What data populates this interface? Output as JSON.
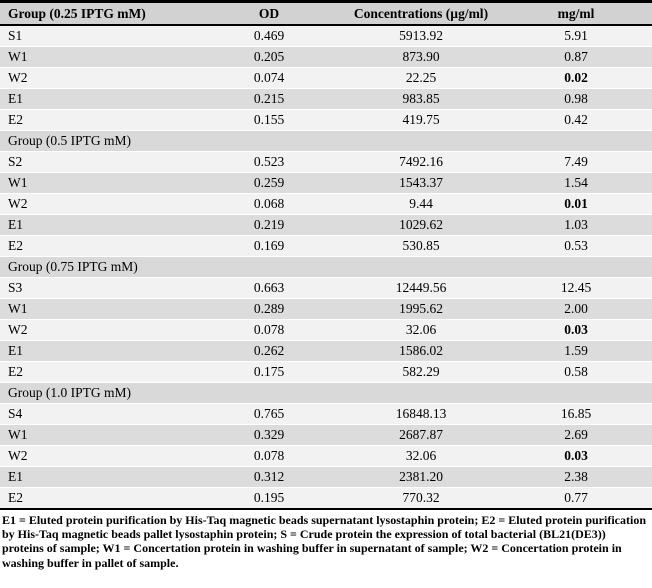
{
  "table": {
    "header": {
      "col_group": "Group (0.25 IPTG mM)",
      "col_od": "OD",
      "col_conc": "Concentrations (µg/ml)",
      "col_mgml": "mg/ml"
    },
    "groups": [
      {
        "label": "",
        "rows": [
          {
            "sample": "S1",
            "od": "0.469",
            "conc": "5913.92",
            "mgml": "5.91",
            "mgml_bold": false
          },
          {
            "sample": "W1",
            "od": "0.205",
            "conc": "873.90",
            "mgml": "0.87",
            "mgml_bold": false
          },
          {
            "sample": "W2",
            "od": "0.074",
            "conc": "22.25",
            "mgml": "0.02",
            "mgml_bold": true
          },
          {
            "sample": "E1",
            "od": "0.215",
            "conc": "983.85",
            "mgml": "0.98",
            "mgml_bold": false
          },
          {
            "sample": "E2",
            "od": "0.155",
            "conc": "419.75",
            "mgml": "0.42",
            "mgml_bold": false
          }
        ]
      },
      {
        "label": "Group (0.5 IPTG mM)",
        "rows": [
          {
            "sample": "S2",
            "od": "0.523",
            "conc": "7492.16",
            "mgml": "7.49",
            "mgml_bold": false
          },
          {
            "sample": "W1",
            "od": "0.259",
            "conc": "1543.37",
            "mgml": "1.54",
            "mgml_bold": false
          },
          {
            "sample": "W2",
            "od": "0.068",
            "conc": "9.44",
            "mgml": "0.01",
            "mgml_bold": true
          },
          {
            "sample": "E1",
            "od": "0.219",
            "conc": "1029.62",
            "mgml": "1.03",
            "mgml_bold": false
          },
          {
            "sample": "E2",
            "od": "0.169",
            "conc": "530.85",
            "mgml": "0.53",
            "mgml_bold": false
          }
        ]
      },
      {
        "label": "Group (0.75 IPTG mM)",
        "rows": [
          {
            "sample": "S3",
            "od": "0.663",
            "conc": "12449.56",
            "mgml": "12.45",
            "mgml_bold": false
          },
          {
            "sample": "W1",
            "od": "0.289",
            "conc": "1995.62",
            "mgml": "2.00",
            "mgml_bold": false
          },
          {
            "sample": "W2",
            "od": "0.078",
            "conc": "32.06",
            "mgml": "0.03",
            "mgml_bold": true
          },
          {
            "sample": "E1",
            "od": "0.262",
            "conc": "1586.02",
            "mgml": "1.59",
            "mgml_bold": false
          },
          {
            "sample": "E2",
            "od": "0.175",
            "conc": "582.29",
            "mgml": "0.58",
            "mgml_bold": false
          }
        ]
      },
      {
        "label": "Group (1.0 IPTG mM)",
        "rows": [
          {
            "sample": "S4",
            "od": "0.765",
            "conc": "16848.13",
            "mgml": "16.85",
            "mgml_bold": false
          },
          {
            "sample": "W1",
            "od": "0.329",
            "conc": "2687.87",
            "mgml": "2.69",
            "mgml_bold": false
          },
          {
            "sample": "W2",
            "od": "0.078",
            "conc": "32.06",
            "mgml": "0.03",
            "mgml_bold": true
          },
          {
            "sample": "E1",
            "od": "0.312",
            "conc": "2381.20",
            "mgml": "2.38",
            "mgml_bold": false
          },
          {
            "sample": "E2",
            "od": "0.195",
            "conc": "770.32",
            "mgml": "0.77",
            "mgml_bold": false
          }
        ]
      }
    ],
    "footnote": "E1 = Eluted protein purification by His-Taq magnetic beads supernatant lysostaphin protein; E2 = Eluted protein purification by His-Taq magnetic beads pallet lysostaphin protein; S = Crude protein the expression of total bacterial (BL21(DE3)) proteins of sample; W1 = Concertation protein in washing buffer in supernatant of sample; W2 = Concertation protein in washing buffer in pallet of sample."
  }
}
